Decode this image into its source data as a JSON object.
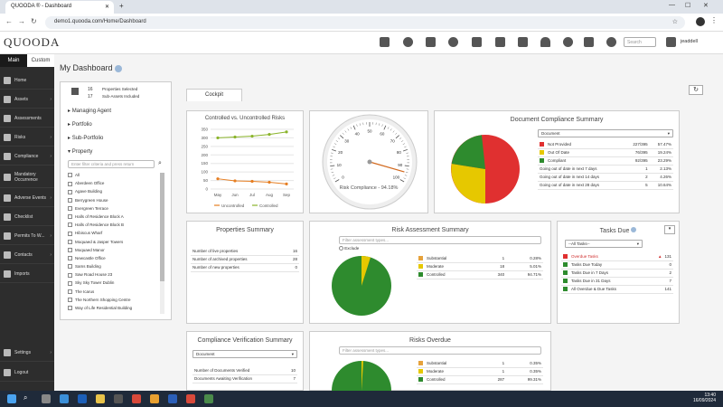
{
  "browser": {
    "tab_title": "QUOODA ® - Dashboard",
    "url": "demo1.quooda.com/Home/Dashboard"
  },
  "app": {
    "logo": "QUOODA",
    "search_placeholder": "Search",
    "user": "jeaddell"
  },
  "sidebar": {
    "tab_main": "Main",
    "tab_custom": "Custom",
    "items": [
      "Home",
      "Assets",
      "Assessments",
      "Risks",
      "Compliance",
      "Mandatory Occurrence",
      "Adverse Events",
      "Checklist",
      "Permits To W...",
      "Contacts",
      "Imports",
      "Settings",
      "Logout"
    ]
  },
  "page": {
    "title": "My Dashboard",
    "tab_cockpit": "Cockpit"
  },
  "selection": {
    "props_count": "16",
    "props_label": "Properties Selected",
    "assets_count": "17",
    "assets_label": "Sub-Assets Included",
    "groups": [
      "Managing Agent",
      "Portfolio",
      "Sub-Portfolio",
      "Property"
    ],
    "filter_placeholder": "Enter filter criteria and press return",
    "properties": [
      "All",
      "Aberdeen Office",
      "Agave Building",
      "Berrygreen House",
      "Evergreen Terrace",
      "Halls of Residence Block A",
      "Halls of Residence Block B",
      "Hibiscus Wharf",
      "Moquaed & Jasper Towers",
      "Moquaed Manor",
      "Newcastle Office",
      "Sams Building",
      "Saw Road House 23",
      "Sky Sky Tower Dublin",
      "The Icarus",
      "The Northern Shopping Centre",
      "Way of Life Residential Building"
    ]
  },
  "controlled_chart": {
    "title": "Controlled vs. Uncontrolled Risks",
    "legend_uncontrolled": "Uncontrolled",
    "legend_controlled": "Controlled",
    "color_uncontrolled": "#e67e22",
    "color_controlled": "#8ab42a"
  },
  "chart_data": {
    "type": "line",
    "title": "Controlled vs. Uncontrolled Risks",
    "categories": [
      "May",
      "Jun",
      "Jul",
      "Aug",
      "Sep"
    ],
    "y_ticks": [
      "0",
      "50",
      "100",
      "150",
      "200",
      "250",
      "300",
      "350"
    ],
    "ylim": [
      0,
      350
    ],
    "series": [
      {
        "name": "Uncontrolled",
        "values": [
          60,
          48,
          45,
          40,
          30
        ]
      },
      {
        "name": "Controlled",
        "values": [
          300,
          305,
          310,
          320,
          335
        ]
      }
    ]
  },
  "gauge": {
    "label": "Risk Compliance - 94.18%",
    "value": 94.18,
    "ticks": [
      "0",
      "10",
      "20",
      "30",
      "40",
      "50",
      "60",
      "70",
      "80",
      "90",
      "100"
    ]
  },
  "doc_compliance": {
    "title": "Document Compliance Summary",
    "select": "Document",
    "rows": [
      {
        "label": "Not Provided",
        "count": "227/395",
        "pct": "57.47%",
        "color": "#e03030"
      },
      {
        "label": "Out Of Date",
        "count": "76/395",
        "pct": "19.24%",
        "color": "#e6c800"
      },
      {
        "label": "Compliant",
        "count": "92/395",
        "pct": "23.29%",
        "color": "#2e8b2e"
      },
      {
        "label": "Going out of date in next 7 days",
        "count": "1",
        "pct": "2.13%"
      },
      {
        "label": "Going out of date in next 14 days",
        "count": "2",
        "pct": "4.26%"
      },
      {
        "label": "Going out of date in next 28 days",
        "count": "5",
        "pct": "10.64%"
      }
    ]
  },
  "properties_summary": {
    "title": "Properties Summary",
    "rows": [
      {
        "label": "Number of live properties",
        "value": "16"
      },
      {
        "label": "Number of archived properties",
        "value": "28"
      },
      {
        "label": "Number of new properties",
        "value": "0"
      }
    ]
  },
  "risk_assessment": {
    "title": "Risk Assessment Summary",
    "filter_placeholder": "Filter assessment types...",
    "exclude": "Exclude",
    "rows": [
      {
        "label": "Substantial",
        "count": "1",
        "pct": "0.28%",
        "color": "#e6a23c"
      },
      {
        "label": "Moderate",
        "count": "18",
        "pct": "5.01%",
        "color": "#e6c800"
      },
      {
        "label": "Controlled",
        "count": "340",
        "pct": "94.71%",
        "color": "#2e8b2e"
      }
    ]
  },
  "tasks_due": {
    "title": "Tasks Due",
    "select": "--All Tasks--",
    "rows": [
      {
        "label": "Overdue Tasks",
        "value": "131",
        "color": "#e03030"
      },
      {
        "label": "Tasks Due Today",
        "value": "0",
        "color": "#2e8b2e"
      },
      {
        "label": "Tasks Due in 7 Days",
        "value": "2",
        "color": "#2e8b2e"
      },
      {
        "label": "Tasks Due in 31 Days",
        "value": "7",
        "color": "#2e8b2e"
      },
      {
        "label": "All Overdue & Due Tasks",
        "value": "141",
        "color": "#2e8b2e"
      }
    ]
  },
  "compliance_verification": {
    "title": "Compliance Verification Summary",
    "select": "Document",
    "rows": [
      {
        "label": "Number of Documents Verified",
        "value": "10"
      },
      {
        "label": "Documents Awaiting Verification",
        "value": "7"
      }
    ]
  },
  "risks_overdue": {
    "title": "Risks Overdue",
    "filter_placeholder": "Filter assessment types...",
    "rows": [
      {
        "label": "Substantial",
        "count": "1",
        "pct": "0.35%",
        "color": "#e6a23c"
      },
      {
        "label": "Moderate",
        "count": "1",
        "pct": "0.35%",
        "color": "#e6c800"
      },
      {
        "label": "Controlled",
        "count": "287",
        "pct": "99.31%",
        "color": "#2e8b2e"
      }
    ]
  },
  "taskbar": {
    "time": "13:40",
    "date": "16/09/2024"
  }
}
